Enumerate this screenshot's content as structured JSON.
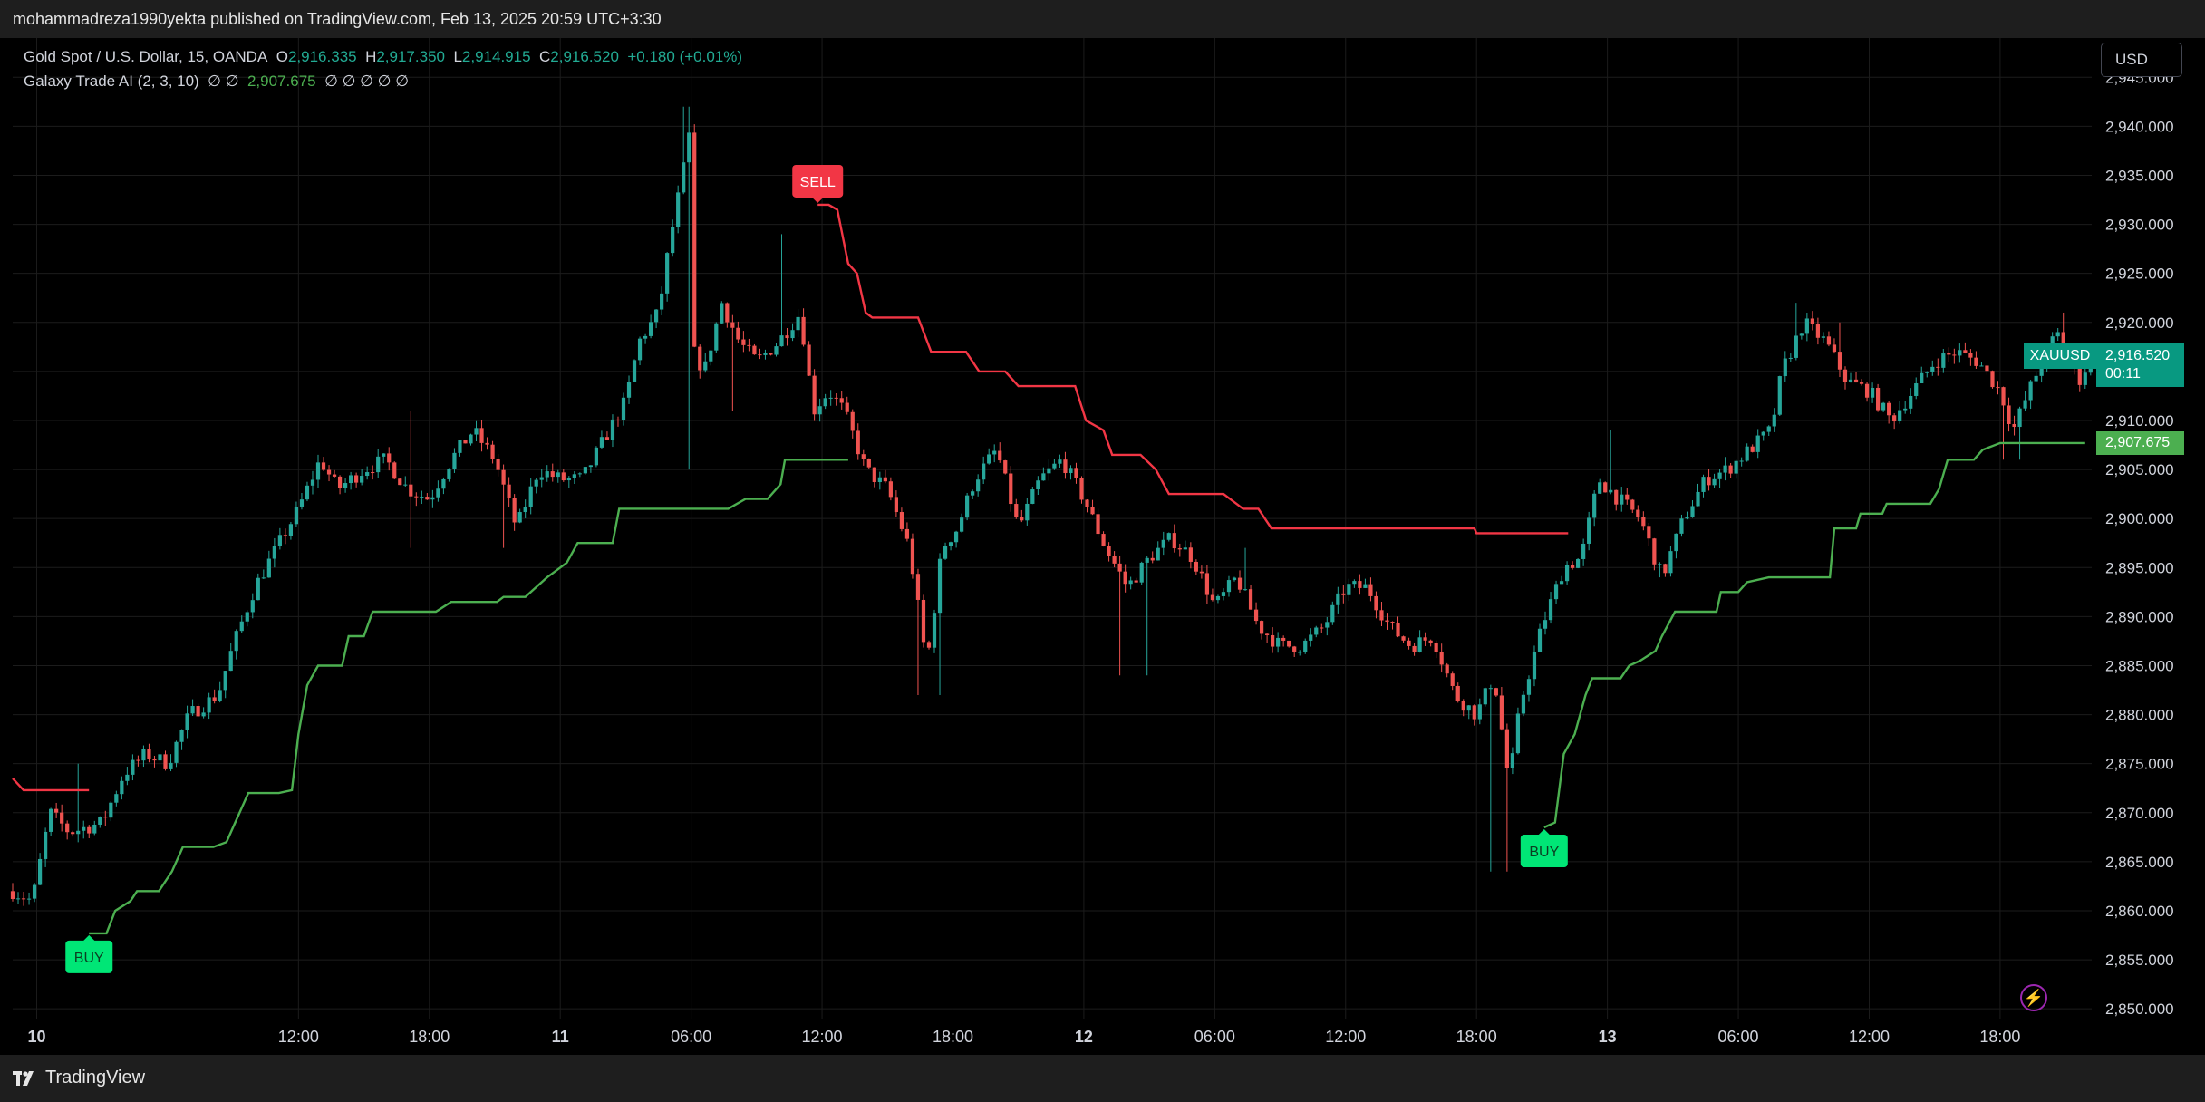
{
  "header": {
    "published_by": "mohammadreza1990yekta published on TradingView.com, Feb 13, 2025 20:59 UTC+3:30"
  },
  "footer": {
    "brand": "TradingView"
  },
  "legend": {
    "symbol": "Gold Spot / U.S. Dollar, 15, OANDA",
    "o_label": "O",
    "o_value": "2,916.335",
    "h_label": "H",
    "h_value": "2,917.350",
    "l_label": "L",
    "l_value": "2,914.915",
    "c_label": "C",
    "c_value": "2,916.520",
    "change": "+0.180 (+0.01%)",
    "indicator": "Galaxy Trade AI (2, 3, 10)",
    "indicator_pre": "∅ ∅",
    "indicator_value": "2,907.675",
    "indicator_post": "∅ ∅ ∅ ∅ ∅"
  },
  "currency_button": "USD",
  "price_tags": {
    "symbol": "XAUUSD",
    "price": "2,916.520",
    "countdown": "00:11",
    "supertrend": "2,907.675"
  },
  "colors": {
    "bull": "#26a69a",
    "bear": "#ef5350",
    "trend_up": "#4caf50",
    "trend_down": "#f23645",
    "buy_label": "#00e676",
    "sell_label": "#f23645",
    "tag": "#089981",
    "grid": "#1c1c1c"
  },
  "icons": {
    "logo": "tradingview-logo-icon",
    "alert": "lightning-icon"
  },
  "chart_data": {
    "type": "candlestick",
    "symbol": "XAUUSD",
    "timeframe": "15",
    "ylim": [
      2849,
      2949
    ],
    "y_ticks": [
      "2,850.000",
      "2,855.000",
      "2,860.000",
      "2,865.000",
      "2,870.000",
      "2,875.000",
      "2,880.000",
      "2,885.000",
      "2,890.000",
      "2,895.000",
      "2,900.000",
      "2,905.000",
      "2,910.000",
      "2,915.000",
      "2,920.000",
      "2,925.000",
      "2,930.000",
      "2,935.000",
      "2,940.000",
      "2,945.000"
    ],
    "x_ticks": [
      {
        "label": "10",
        "t": 0,
        "bold": true
      },
      {
        "label": "12:00",
        "t": 12
      },
      {
        "label": "18:00",
        "t": 18
      },
      {
        "label": "11",
        "t": 24,
        "bold": true
      },
      {
        "label": "06:00",
        "t": 30
      },
      {
        "label": "12:00",
        "t": 36
      },
      {
        "label": "18:00",
        "t": 42
      },
      {
        "label": "12",
        "t": 48,
        "bold": true
      },
      {
        "label": "06:00",
        "t": 54
      },
      {
        "label": "12:00",
        "t": 60
      },
      {
        "label": "18:00",
        "t": 66
      },
      {
        "label": "13",
        "t": 72,
        "bold": true
      },
      {
        "label": "06:00",
        "t": 78
      },
      {
        "label": "12:00",
        "t": 84
      },
      {
        "label": "18:00",
        "t": 90
      }
    ],
    "x_range_hours": [
      -1.1,
      94.2
    ],
    "candle_hours": 0.25,
    "price_path": [
      [
        -1.1,
        2862
      ],
      [
        -0.2,
        2861
      ],
      [
        0.6,
        2870
      ],
      [
        1.5,
        2868
      ],
      [
        3,
        2869
      ],
      [
        4,
        2874
      ],
      [
        5,
        2876
      ],
      [
        6,
        2875
      ],
      [
        7,
        2880
      ],
      [
        8.3,
        2882
      ],
      [
        9,
        2887
      ],
      [
        10,
        2893
      ],
      [
        11,
        2897
      ],
      [
        12,
        2901
      ],
      [
        13,
        2906
      ],
      [
        13.8,
        2903
      ],
      [
        15,
        2905
      ],
      [
        16,
        2906
      ],
      [
        17,
        2903
      ],
      [
        18,
        2902
      ],
      [
        19,
        2906
      ],
      [
        20,
        2909
      ],
      [
        21,
        2906
      ],
      [
        22,
        2899
      ],
      [
        23,
        2905
      ],
      [
        24,
        2904
      ],
      [
        25,
        2904
      ],
      [
        26,
        2908
      ],
      [
        27,
        2912
      ],
      [
        27.6,
        2918
      ],
      [
        28.5,
        2921
      ],
      [
        29,
        2928
      ],
      [
        29.6,
        2935
      ],
      [
        29.9,
        2939
      ],
      [
        30.1,
        2917
      ],
      [
        30.6,
        2915
      ],
      [
        31.4,
        2922
      ],
      [
        32.2,
        2918
      ],
      [
        33,
        2916
      ],
      [
        34,
        2918
      ],
      [
        35,
        2921
      ],
      [
        35.6,
        2911
      ],
      [
        36.3,
        2913
      ],
      [
        37,
        2911
      ],
      [
        38,
        2905
      ],
      [
        39,
        2903
      ],
      [
        40,
        2897
      ],
      [
        40.8,
        2885
      ],
      [
        41.5,
        2897
      ],
      [
        42.2,
        2899
      ],
      [
        43,
        2904
      ],
      [
        44,
        2907
      ],
      [
        45,
        2899
      ],
      [
        46,
        2904
      ],
      [
        47,
        2906
      ],
      [
        48,
        2902
      ],
      [
        49,
        2897
      ],
      [
        50,
        2893
      ],
      [
        51,
        2896
      ],
      [
        52,
        2898
      ],
      [
        53,
        2896
      ],
      [
        54,
        2891
      ],
      [
        55,
        2894
      ],
      [
        56,
        2889
      ],
      [
        57,
        2887
      ],
      [
        58,
        2887
      ],
      [
        59,
        2889
      ],
      [
        60,
        2893
      ],
      [
        61,
        2893
      ],
      [
        62,
        2889
      ],
      [
        63,
        2887
      ],
      [
        64,
        2888
      ],
      [
        65,
        2882
      ],
      [
        66,
        2880
      ],
      [
        66.8,
        2884
      ],
      [
        67.5,
        2873
      ],
      [
        68,
        2881
      ],
      [
        69,
        2889
      ],
      [
        70,
        2895
      ],
      [
        70.8,
        2896
      ],
      [
        71.6,
        2904
      ],
      [
        72.5,
        2902
      ],
      [
        73.5,
        2900
      ],
      [
        74.5,
        2894
      ],
      [
        75.5,
        2900
      ],
      [
        76.5,
        2904
      ],
      [
        77.5,
        2905
      ],
      [
        78.5,
        2907
      ],
      [
        79.5,
        2909
      ],
      [
        80,
        2915
      ],
      [
        81,
        2920
      ],
      [
        82,
        2918
      ],
      [
        83,
        2914
      ],
      [
        84,
        2913
      ],
      [
        85,
        2910
      ],
      [
        86,
        2913
      ],
      [
        87,
        2916
      ],
      [
        88,
        2917
      ],
      [
        89,
        2916
      ],
      [
        90,
        2913
      ],
      [
        90.6,
        2909
      ],
      [
        91.5,
        2914
      ],
      [
        92.6,
        2919
      ],
      [
        93.6,
        2914
      ],
      [
        94.2,
        2916.5
      ]
    ],
    "wicks": [
      {
        "t": 2.0,
        "hi": 2875
      },
      {
        "t": 9.0,
        "hi": 2886
      },
      {
        "t": 17.1,
        "hi": 2911,
        "lo": 2897
      },
      {
        "t": 21.5,
        "lo": 2897
      },
      {
        "t": 29.6,
        "hi": 2942
      },
      {
        "t": 29.9,
        "hi": 2942,
        "lo": 2905
      },
      {
        "t": 31.9,
        "lo": 2911
      },
      {
        "t": 34.1,
        "hi": 2929
      },
      {
        "t": 40.5,
        "lo": 2882
      },
      {
        "t": 41.3,
        "lo": 2882
      },
      {
        "t": 49.6,
        "lo": 2884
      },
      {
        "t": 50.9,
        "lo": 2884
      },
      {
        "t": 55.3,
        "hi": 2897
      },
      {
        "t": 66.6,
        "lo": 2864
      },
      {
        "t": 67.3,
        "lo": 2864
      },
      {
        "t": 72.1,
        "hi": 2909
      },
      {
        "t": 74.4,
        "lo": 2894
      },
      {
        "t": 80.6,
        "hi": 2922
      },
      {
        "t": 82.6,
        "hi": 2920
      },
      {
        "t": 92.9,
        "hi": 2921
      },
      {
        "t": 90.2,
        "lo": 2906
      },
      {
        "t": 90.9,
        "lo": 2906
      }
    ],
    "supertrend": [
      {
        "color": "#f23645",
        "points": [
          [
            -1.1,
            2873.5
          ],
          [
            -0.6,
            2872.3
          ],
          [
            2.4,
            2872.3
          ]
        ]
      },
      {
        "color": "#4caf50",
        "points": [
          [
            2.4,
            2857.7
          ],
          [
            3.2,
            2857.7
          ],
          [
            3.6,
            2860
          ],
          [
            4.3,
            2861
          ],
          [
            4.6,
            2862
          ],
          [
            5.6,
            2862
          ],
          [
            6.2,
            2864
          ],
          [
            6.7,
            2866.5
          ],
          [
            8.1,
            2866.5
          ],
          [
            8.7,
            2867
          ],
          [
            9.7,
            2872
          ],
          [
            11.1,
            2872
          ],
          [
            11.7,
            2872.3
          ],
          [
            12,
            2878
          ],
          [
            12.4,
            2883
          ],
          [
            12.9,
            2885
          ],
          [
            14,
            2885
          ],
          [
            14.3,
            2888
          ],
          [
            15,
            2888
          ],
          [
            15.4,
            2890.5
          ],
          [
            18.3,
            2890.5
          ],
          [
            19,
            2891.5
          ],
          [
            21.1,
            2891.5
          ],
          [
            21.4,
            2892
          ],
          [
            22.4,
            2892
          ],
          [
            23.4,
            2894
          ],
          [
            24.3,
            2895.5
          ],
          [
            24.8,
            2897.5
          ],
          [
            26.4,
            2897.5
          ],
          [
            26.7,
            2901
          ],
          [
            31.7,
            2901
          ],
          [
            32.5,
            2902
          ],
          [
            33.5,
            2902
          ],
          [
            34.1,
            2903.5
          ],
          [
            34.3,
            2906
          ],
          [
            37.2,
            2906
          ]
        ]
      },
      {
        "color": "#f23645",
        "points": [
          [
            35.8,
            2932
          ],
          [
            36.3,
            2932
          ],
          [
            36.7,
            2931.5
          ],
          [
            37.2,
            2926
          ],
          [
            37.6,
            2925
          ],
          [
            38,
            2921
          ],
          [
            38.3,
            2920.5
          ],
          [
            40.4,
            2920.5
          ],
          [
            41,
            2917
          ],
          [
            42.6,
            2917
          ],
          [
            43.2,
            2915
          ],
          [
            44.4,
            2915
          ],
          [
            45,
            2913.5
          ],
          [
            47.6,
            2913.5
          ],
          [
            48.1,
            2910
          ],
          [
            48.9,
            2909
          ],
          [
            49.3,
            2906.5
          ],
          [
            50.6,
            2906.5
          ],
          [
            51.3,
            2905
          ],
          [
            51.9,
            2902.5
          ],
          [
            54.4,
            2902.5
          ],
          [
            55.3,
            2901
          ],
          [
            56,
            2901
          ],
          [
            56.6,
            2899
          ],
          [
            63.5,
            2899
          ],
          [
            65.9,
            2899
          ],
          [
            66,
            2898.5
          ],
          [
            70.2,
            2898.5
          ]
        ]
      },
      {
        "color": "#4caf50",
        "points": [
          [
            69.1,
            2868.5
          ],
          [
            69.6,
            2869
          ],
          [
            70,
            2876
          ],
          [
            70.5,
            2878
          ],
          [
            71,
            2882
          ],
          [
            71.3,
            2883.7
          ],
          [
            72.6,
            2883.7
          ],
          [
            73,
            2885
          ],
          [
            73.5,
            2885.5
          ],
          [
            74.2,
            2886.5
          ],
          [
            74.5,
            2888
          ],
          [
            75.1,
            2890.5
          ],
          [
            77,
            2890.5
          ],
          [
            77.2,
            2892.5
          ],
          [
            78,
            2892.5
          ],
          [
            78.4,
            2893.5
          ],
          [
            79.4,
            2894
          ],
          [
            82.2,
            2894
          ],
          [
            82.4,
            2899
          ],
          [
            83.4,
            2899
          ],
          [
            83.6,
            2900.5
          ],
          [
            84.6,
            2900.5
          ],
          [
            84.8,
            2901.5
          ],
          [
            86.8,
            2901.5
          ],
          [
            87.2,
            2903
          ],
          [
            87.6,
            2906
          ],
          [
            88.8,
            2906
          ],
          [
            89.2,
            2907
          ],
          [
            90,
            2907.7
          ],
          [
            93.9,
            2907.7
          ]
        ]
      }
    ],
    "signals": [
      {
        "label": "BUY",
        "t": 2.4,
        "price": 2857.7,
        "side": "buy"
      },
      {
        "label": "SELL",
        "t": 35.8,
        "price": 2932,
        "side": "sell"
      },
      {
        "label": "BUY",
        "t": 69.1,
        "price": 2868.5,
        "side": "buy"
      }
    ],
    "last_close": 2916.52,
    "supertrend_last": 2907.675
  }
}
